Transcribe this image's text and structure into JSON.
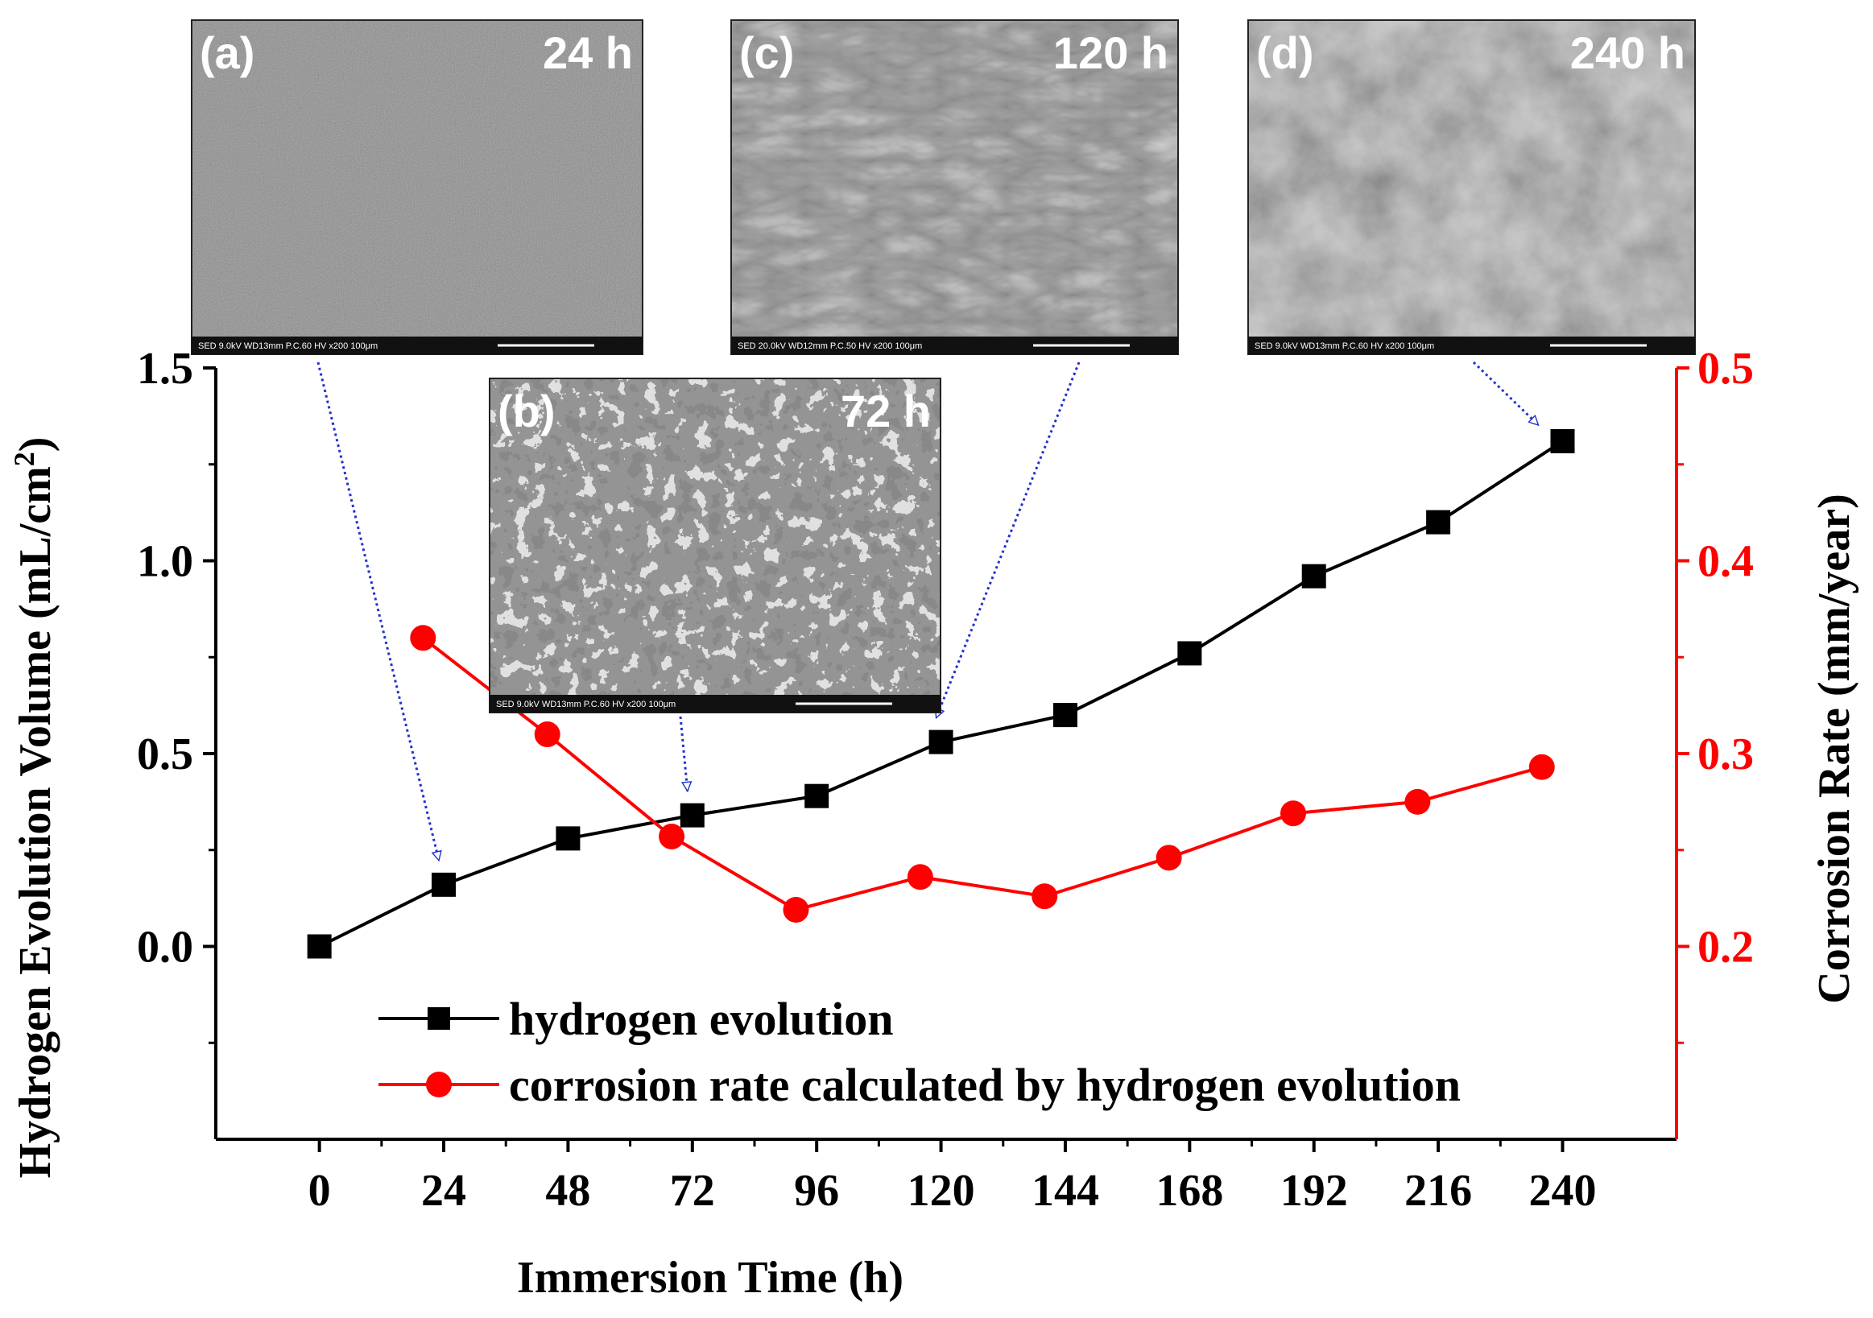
{
  "chart_data": {
    "type": "line",
    "xlabel": "Immersion Time (h)",
    "ylabel_left": "Hydrogen Evolution Volume (mL/cm",
    "ylabel_left_sup": "2",
    "ylabel_left_close": ")",
    "ylabel_right": "Corrosion Rate (mm/year)",
    "xlim": [
      -20,
      262
    ],
    "ylim_left": [
      -0.5,
      1.5
    ],
    "ylim_right": [
      0.1,
      0.5
    ],
    "x_ticks": [
      0,
      24,
      48,
      72,
      96,
      120,
      144,
      168,
      192,
      216,
      240
    ],
    "y_left_ticks": [
      "0.0",
      "0.5",
      "1.0",
      "1.5"
    ],
    "y_right_ticks": [
      "0.2",
      "0.3",
      "0.4",
      "0.5"
    ],
    "left_axis_color": "#000000",
    "right_axis_color": "#ff0000",
    "legend_position": "bottom-left",
    "series": [
      {
        "name": "hydrogen evolution",
        "axis": "left",
        "marker": "square",
        "color": "#000000",
        "x": [
          0,
          24,
          48,
          72,
          96,
          120,
          144,
          168,
          192,
          216,
          240
        ],
        "y": [
          0.0,
          0.16,
          0.28,
          0.34,
          0.39,
          0.53,
          0.6,
          0.76,
          0.96,
          1.1,
          1.31
        ]
      },
      {
        "name": "corrosion rate calculated by hydrogen evolution",
        "axis": "right",
        "marker": "circle",
        "color": "#ff0000",
        "x": [
          20,
          44,
          68,
          92,
          116,
          140,
          164,
          188,
          212,
          236
        ],
        "y": [
          0.36,
          0.31,
          0.257,
          0.219,
          0.236,
          0.226,
          0.246,
          0.269,
          0.275,
          0.293
        ]
      }
    ],
    "insets": [
      {
        "label": "(a)",
        "time": "24 h",
        "footer": "SED  9.0kV  WD13mm P.C.60  HV     x200         100μm",
        "arrow_to_x": 24
      },
      {
        "label": "(b)",
        "time": "72 h",
        "footer": "SED  9.0kV  WD13mm P.C.60  HV     x200         100μm",
        "arrow_to_x": 72
      },
      {
        "label": "(c)",
        "time": "120 h",
        "footer": "SED  20.0kV  WD12mm P.C.50  HV     x200         100μm",
        "arrow_to_x": 120
      },
      {
        "label": "(d)",
        "time": "240 h",
        "footer": "SED  9.0kV  WD13mm P.C.60  HV     x200         100μm",
        "arrow_to_x": 240
      }
    ]
  }
}
